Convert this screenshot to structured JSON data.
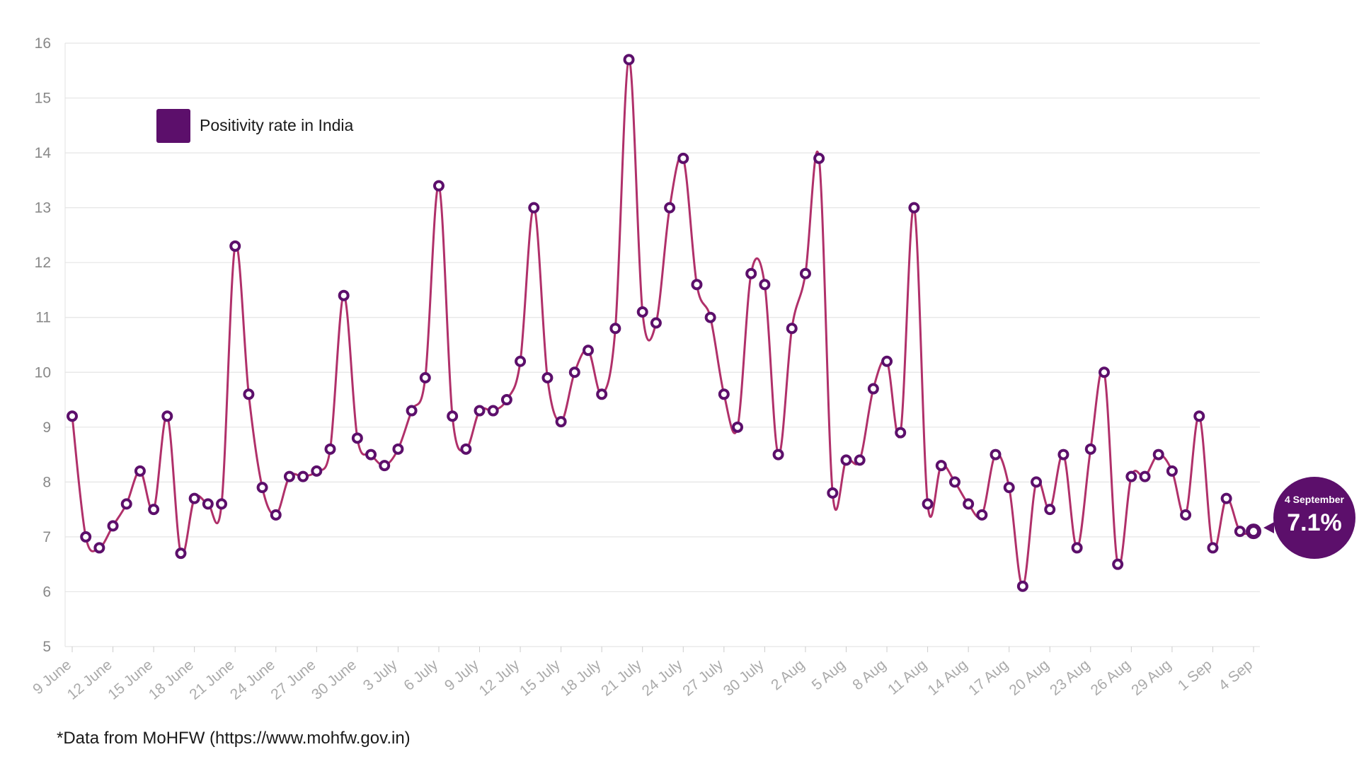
{
  "colors": {
    "accent": "#5c0f6b",
    "line": "#b0306a",
    "grid": "#e5e5e5",
    "axis_text": "#888888"
  },
  "legend": {
    "label": "Positivity rate in India"
  },
  "source": "*Data from MoHFW (https://www.mohfw.gov.in)",
  "callout": {
    "date": "4 September",
    "value": "7.1%"
  },
  "chart_data": {
    "type": "line",
    "title": "",
    "xlabel": "",
    "ylabel": "",
    "ylim": [
      5,
      16
    ],
    "yticks": [
      5,
      6,
      7,
      8,
      9,
      10,
      11,
      12,
      13,
      14,
      15,
      16
    ],
    "grid": true,
    "legend_position": "top-left",
    "x_tick_labels": [
      "9 June",
      "12 June",
      "15 June",
      "18 June",
      "21 June",
      "24 June",
      "27 June",
      "30 June",
      "3 July",
      "6 July",
      "9 July",
      "12 July",
      "15 July",
      "18 July",
      "21 July",
      "24 July",
      "27 July",
      "30 July",
      "2 Aug",
      "5 Aug",
      "8 Aug",
      "11 Aug",
      "14 Aug",
      "17 Aug",
      "20 Aug",
      "23 Aug",
      "26 Aug",
      "29 Aug",
      "1 Sep",
      "4 Sep"
    ],
    "series": [
      {
        "name": "Positivity rate in India",
        "values": [
          9.2,
          7.0,
          6.8,
          7.2,
          7.6,
          8.2,
          7.5,
          9.2,
          6.7,
          7.7,
          7.6,
          7.6,
          12.3,
          9.6,
          7.9,
          7.4,
          8.1,
          8.1,
          8.2,
          8.6,
          11.4,
          8.8,
          8.5,
          8.3,
          8.6,
          9.3,
          9.9,
          13.4,
          9.2,
          8.6,
          9.3,
          9.3,
          9.5,
          10.2,
          13.0,
          9.9,
          9.1,
          10.0,
          10.4,
          9.6,
          10.8,
          15.7,
          11.1,
          10.9,
          13.0,
          13.9,
          11.6,
          11.0,
          9.6,
          9.0,
          11.8,
          11.6,
          8.5,
          10.8,
          11.8,
          13.9,
          7.8,
          8.4,
          8.4,
          9.7,
          10.2,
          8.9,
          13.0,
          7.6,
          8.3,
          8.0,
          7.6,
          7.4,
          8.5,
          7.9,
          6.1,
          8.0,
          7.5,
          8.5,
          6.8,
          8.6,
          10.0,
          6.5,
          8.1,
          8.1,
          8.5,
          8.2,
          7.4,
          9.2,
          6.8,
          7.7,
          7.1,
          7.1
        ]
      }
    ]
  }
}
